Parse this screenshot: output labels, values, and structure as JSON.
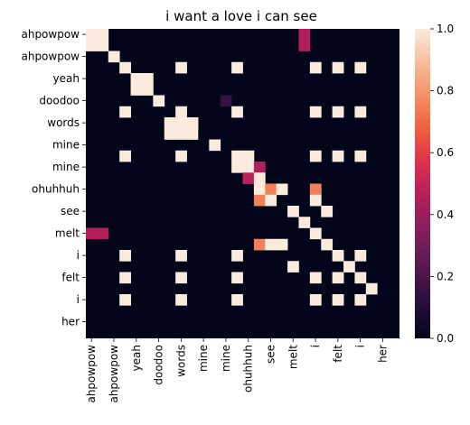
{
  "chart_data": {
    "type": "heatmap",
    "title": "i want a love i can see",
    "xlabel": "",
    "ylabel": "",
    "row_labels": [
      "ahpowpow",
      "",
      "ahpowpow",
      "",
      "yeah",
      "",
      "doodoo",
      "",
      "words",
      "",
      "mine",
      "",
      "mine",
      "",
      "ohuhhuh",
      "",
      "see",
      "",
      "melt",
      "",
      "i",
      "",
      "felt",
      "",
      "i",
      "",
      "her",
      ""
    ],
    "col_labels": [
      "ahpowpow",
      "",
      "ahpowpow",
      "",
      "yeah",
      "",
      "doodoo",
      "",
      "words",
      "",
      "mine",
      "",
      "mine",
      "",
      "ohuhhuh",
      "",
      "see",
      "",
      "melt",
      "",
      "i",
      "",
      "felt",
      "",
      "i",
      "",
      "her",
      ""
    ],
    "colorbar": {
      "min": 0.0,
      "max": 1.0,
      "ticks": [
        "0.0",
        "0.2",
        "0.4",
        "0.6",
        "0.8",
        "1.0"
      ],
      "colormap": "rocket"
    },
    "cells": [
      [
        0,
        0,
        1
      ],
      [
        0,
        1,
        1
      ],
      [
        1,
        0,
        1
      ],
      [
        1,
        1,
        1
      ],
      [
        0,
        19,
        0.45
      ],
      [
        1,
        19,
        0.45
      ],
      [
        2,
        2,
        1
      ],
      [
        3,
        3,
        1
      ],
      [
        3,
        8,
        1
      ],
      [
        3,
        13,
        1
      ],
      [
        3,
        20,
        1
      ],
      [
        3,
        22,
        1
      ],
      [
        3,
        24,
        1
      ],
      [
        4,
        4,
        1
      ],
      [
        4,
        5,
        1
      ],
      [
        5,
        4,
        1
      ],
      [
        5,
        5,
        1
      ],
      [
        6,
        6,
        1
      ],
      [
        6,
        12,
        0.15
      ],
      [
        7,
        3,
        1
      ],
      [
        7,
        8,
        1
      ],
      [
        7,
        13,
        1
      ],
      [
        7,
        20,
        1
      ],
      [
        7,
        22,
        1
      ],
      [
        7,
        24,
        1
      ],
      [
        8,
        7,
        1
      ],
      [
        8,
        8,
        1
      ],
      [
        8,
        9,
        1
      ],
      [
        9,
        7,
        1
      ],
      [
        8,
        9,
        1
      ],
      [
        9,
        8,
        1
      ],
      [
        9,
        9,
        1
      ],
      [
        10,
        11,
        1
      ],
      [
        11,
        3,
        1
      ],
      [
        11,
        8,
        1
      ],
      [
        11,
        13,
        1
      ],
      [
        11,
        14,
        1
      ],
      [
        11,
        20,
        1
      ],
      [
        11,
        22,
        1
      ],
      [
        11,
        24,
        1
      ],
      [
        12,
        13,
        1
      ],
      [
        12,
        14,
        1
      ],
      [
        12,
        15,
        0.45
      ],
      [
        13,
        14,
        0.48
      ],
      [
        13,
        15,
        1
      ],
      [
        14,
        15,
        1
      ],
      [
        14,
        16,
        0.75
      ],
      [
        14,
        17,
        1
      ],
      [
        14,
        20,
        0.75
      ],
      [
        15,
        15,
        0.75
      ],
      [
        15,
        16,
        1
      ],
      [
        15,
        20,
        1
      ],
      [
        16,
        18,
        1
      ],
      [
        16,
        21,
        1
      ],
      [
        17,
        19,
        1
      ],
      [
        18,
        0,
        0.45
      ],
      [
        18,
        1,
        0.45
      ],
      [
        18,
        20,
        1
      ],
      [
        19,
        15,
        0.75
      ],
      [
        19,
        16,
        1
      ],
      [
        19,
        17,
        1
      ],
      [
        19,
        21,
        1
      ],
      [
        20,
        3,
        1
      ],
      [
        20,
        8,
        1
      ],
      [
        20,
        13,
        1
      ],
      [
        20,
        22,
        1
      ],
      [
        20,
        24,
        1
      ],
      [
        21,
        18,
        1
      ],
      [
        21,
        23,
        1
      ],
      [
        22,
        3,
        1
      ],
      [
        22,
        8,
        1
      ],
      [
        22,
        13,
        1
      ],
      [
        22,
        20,
        1
      ],
      [
        22,
        22,
        1
      ],
      [
        22,
        24,
        1
      ],
      [
        23,
        25,
        1
      ],
      [
        24,
        3,
        1
      ],
      [
        24,
        8,
        1
      ],
      [
        24,
        13,
        1
      ],
      [
        24,
        20,
        1
      ],
      [
        24,
        22,
        1
      ],
      [
        24,
        24,
        1
      ]
    ],
    "grid": false,
    "legend": "colorbar-right"
  }
}
